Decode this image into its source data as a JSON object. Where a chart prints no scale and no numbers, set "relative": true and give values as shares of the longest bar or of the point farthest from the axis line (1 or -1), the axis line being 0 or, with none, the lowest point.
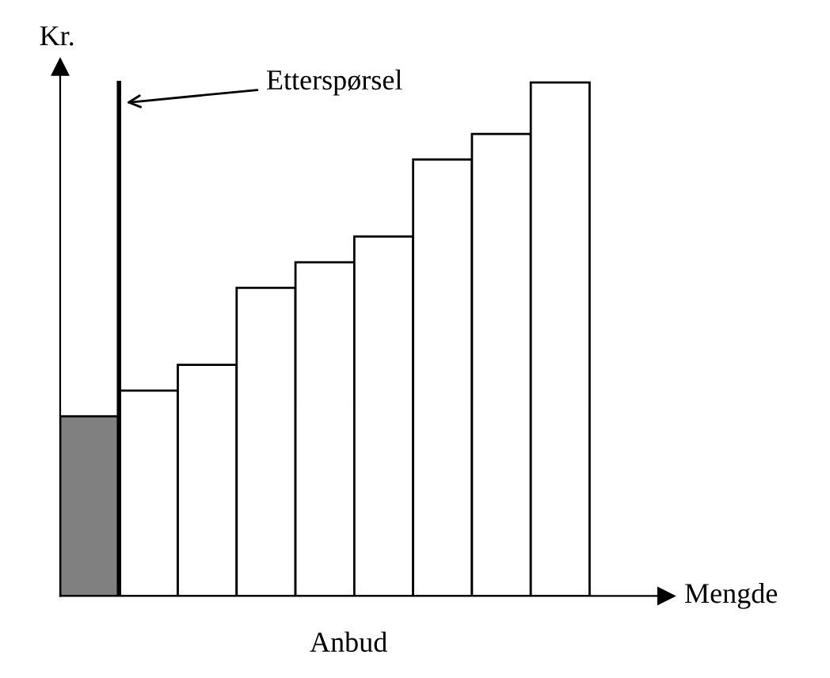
{
  "chart_data": {
    "type": "bar",
    "ylabel": "Kr.",
    "xlabel": "Mengde",
    "annotations": [
      "Etterspørsel",
      "Anbud"
    ],
    "categories": [
      null,
      null,
      null,
      null,
      null,
      null,
      null,
      null,
      null
    ],
    "values": [
      0.35,
      0.4,
      0.45,
      0.6,
      0.65,
      0.7,
      0.85,
      0.9,
      1
    ],
    "colors": [
      "#808080",
      "#ffffff",
      "#ffffff",
      "#ffffff",
      "#ffffff",
      "#ffffff",
      "#ffffff",
      "#ffffff",
      "#ffffff"
    ],
    "relative": true,
    "grid": false,
    "legend": false
  }
}
